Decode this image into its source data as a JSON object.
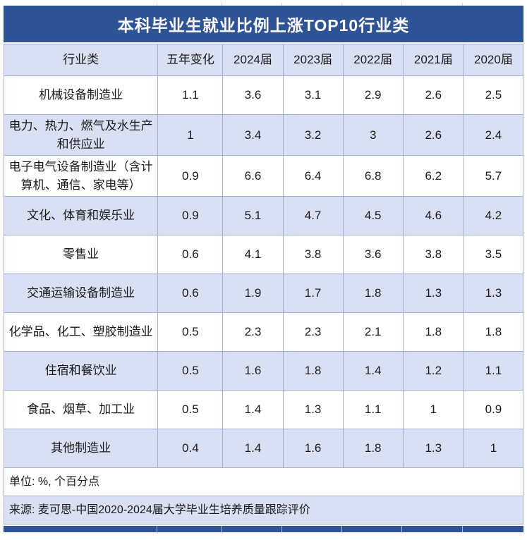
{
  "chart_data": {
    "type": "table",
    "title": "本科毕业生就业比例上涨TOP10行业类",
    "columns": [
      "行业类",
      "五年变化",
      "2024届",
      "2023届",
      "2022届",
      "2021届",
      "2020届"
    ],
    "rows": [
      [
        "机械设备制造业",
        1.1,
        3.6,
        3.1,
        2.9,
        2.6,
        2.5
      ],
      [
        "电力、热力、燃气及水生产和供应业",
        1,
        3.4,
        3.2,
        3,
        2.6,
        2.4
      ],
      [
        "电子电气设备制造业（含计算机、通信、家电等）",
        0.9,
        6.6,
        6.4,
        6.8,
        6.2,
        5.7
      ],
      [
        "文化、体育和娱乐业",
        0.9,
        5.1,
        4.7,
        4.5,
        4.6,
        4.2
      ],
      [
        "零售业",
        0.6,
        4.1,
        3.8,
        3.6,
        3.8,
        3.5
      ],
      [
        "交通运输设备制造业",
        0.6,
        1.9,
        1.7,
        1.8,
        1.3,
        1.3
      ],
      [
        "化学品、化工、塑胶制造业",
        0.5,
        2.3,
        2.3,
        2.1,
        1.8,
        1.8
      ],
      [
        "住宿和餐饮业",
        0.5,
        1.6,
        1.8,
        1.4,
        1.2,
        1.1
      ],
      [
        "食品、烟草、加工业",
        0.5,
        1.4,
        1.3,
        1.1,
        1,
        0.9
      ],
      [
        "其他制造业",
        0.4,
        1.4,
        1.6,
        1.8,
        1.3,
        1
      ]
    ],
    "unit_note": "单位: %, 个百分点",
    "source_note": "来源: 麦可思-中国2020-2024届大学毕业生培养质量跟踪评价",
    "layout_hints": {
      "striped_rows": "alternating white / light-blue starting with white",
      "grid": "on",
      "value_unit": "percent; 五年变化 column in percentage points"
    }
  },
  "colors": {
    "title_bg": "#2F5496",
    "stripe_bg": "#D9E0F3",
    "border": "#9FB1DB",
    "title_text": "#FFFFFF",
    "body_text": "#1A1A1A"
  }
}
